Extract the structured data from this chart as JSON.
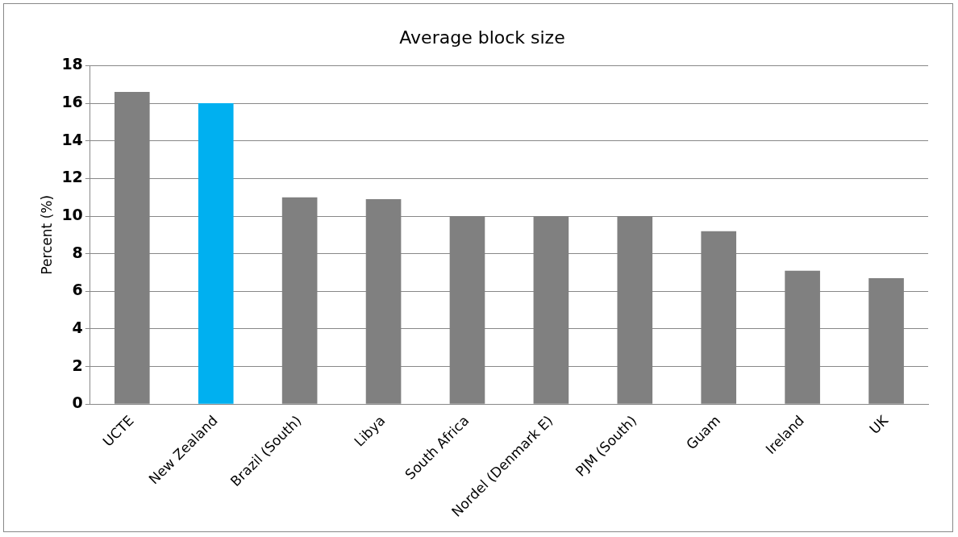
{
  "chart_data": {
    "type": "bar",
    "title": "Average block size",
    "ylabel": "Percent (%)",
    "categories": [
      "UCTE",
      "New Zealand",
      "Brazil (South)",
      "Libya",
      "South Africa",
      "Nordel (Denmark E)",
      "PJM (South)",
      "Guam",
      "Ireland",
      "UK"
    ],
    "values": [
      16.6,
      16.0,
      11.0,
      10.9,
      10.0,
      10.0,
      10.0,
      9.2,
      7.1,
      6.7
    ],
    "colors": [
      "#808080",
      "#00b0f0",
      "#808080",
      "#808080",
      "#808080",
      "#808080",
      "#808080",
      "#808080",
      "#808080",
      "#808080"
    ],
    "ylim": [
      0,
      18
    ],
    "yticks": [
      0,
      2,
      4,
      6,
      8,
      10,
      12,
      14,
      16,
      18
    ],
    "grid": "y",
    "legend": false
  }
}
